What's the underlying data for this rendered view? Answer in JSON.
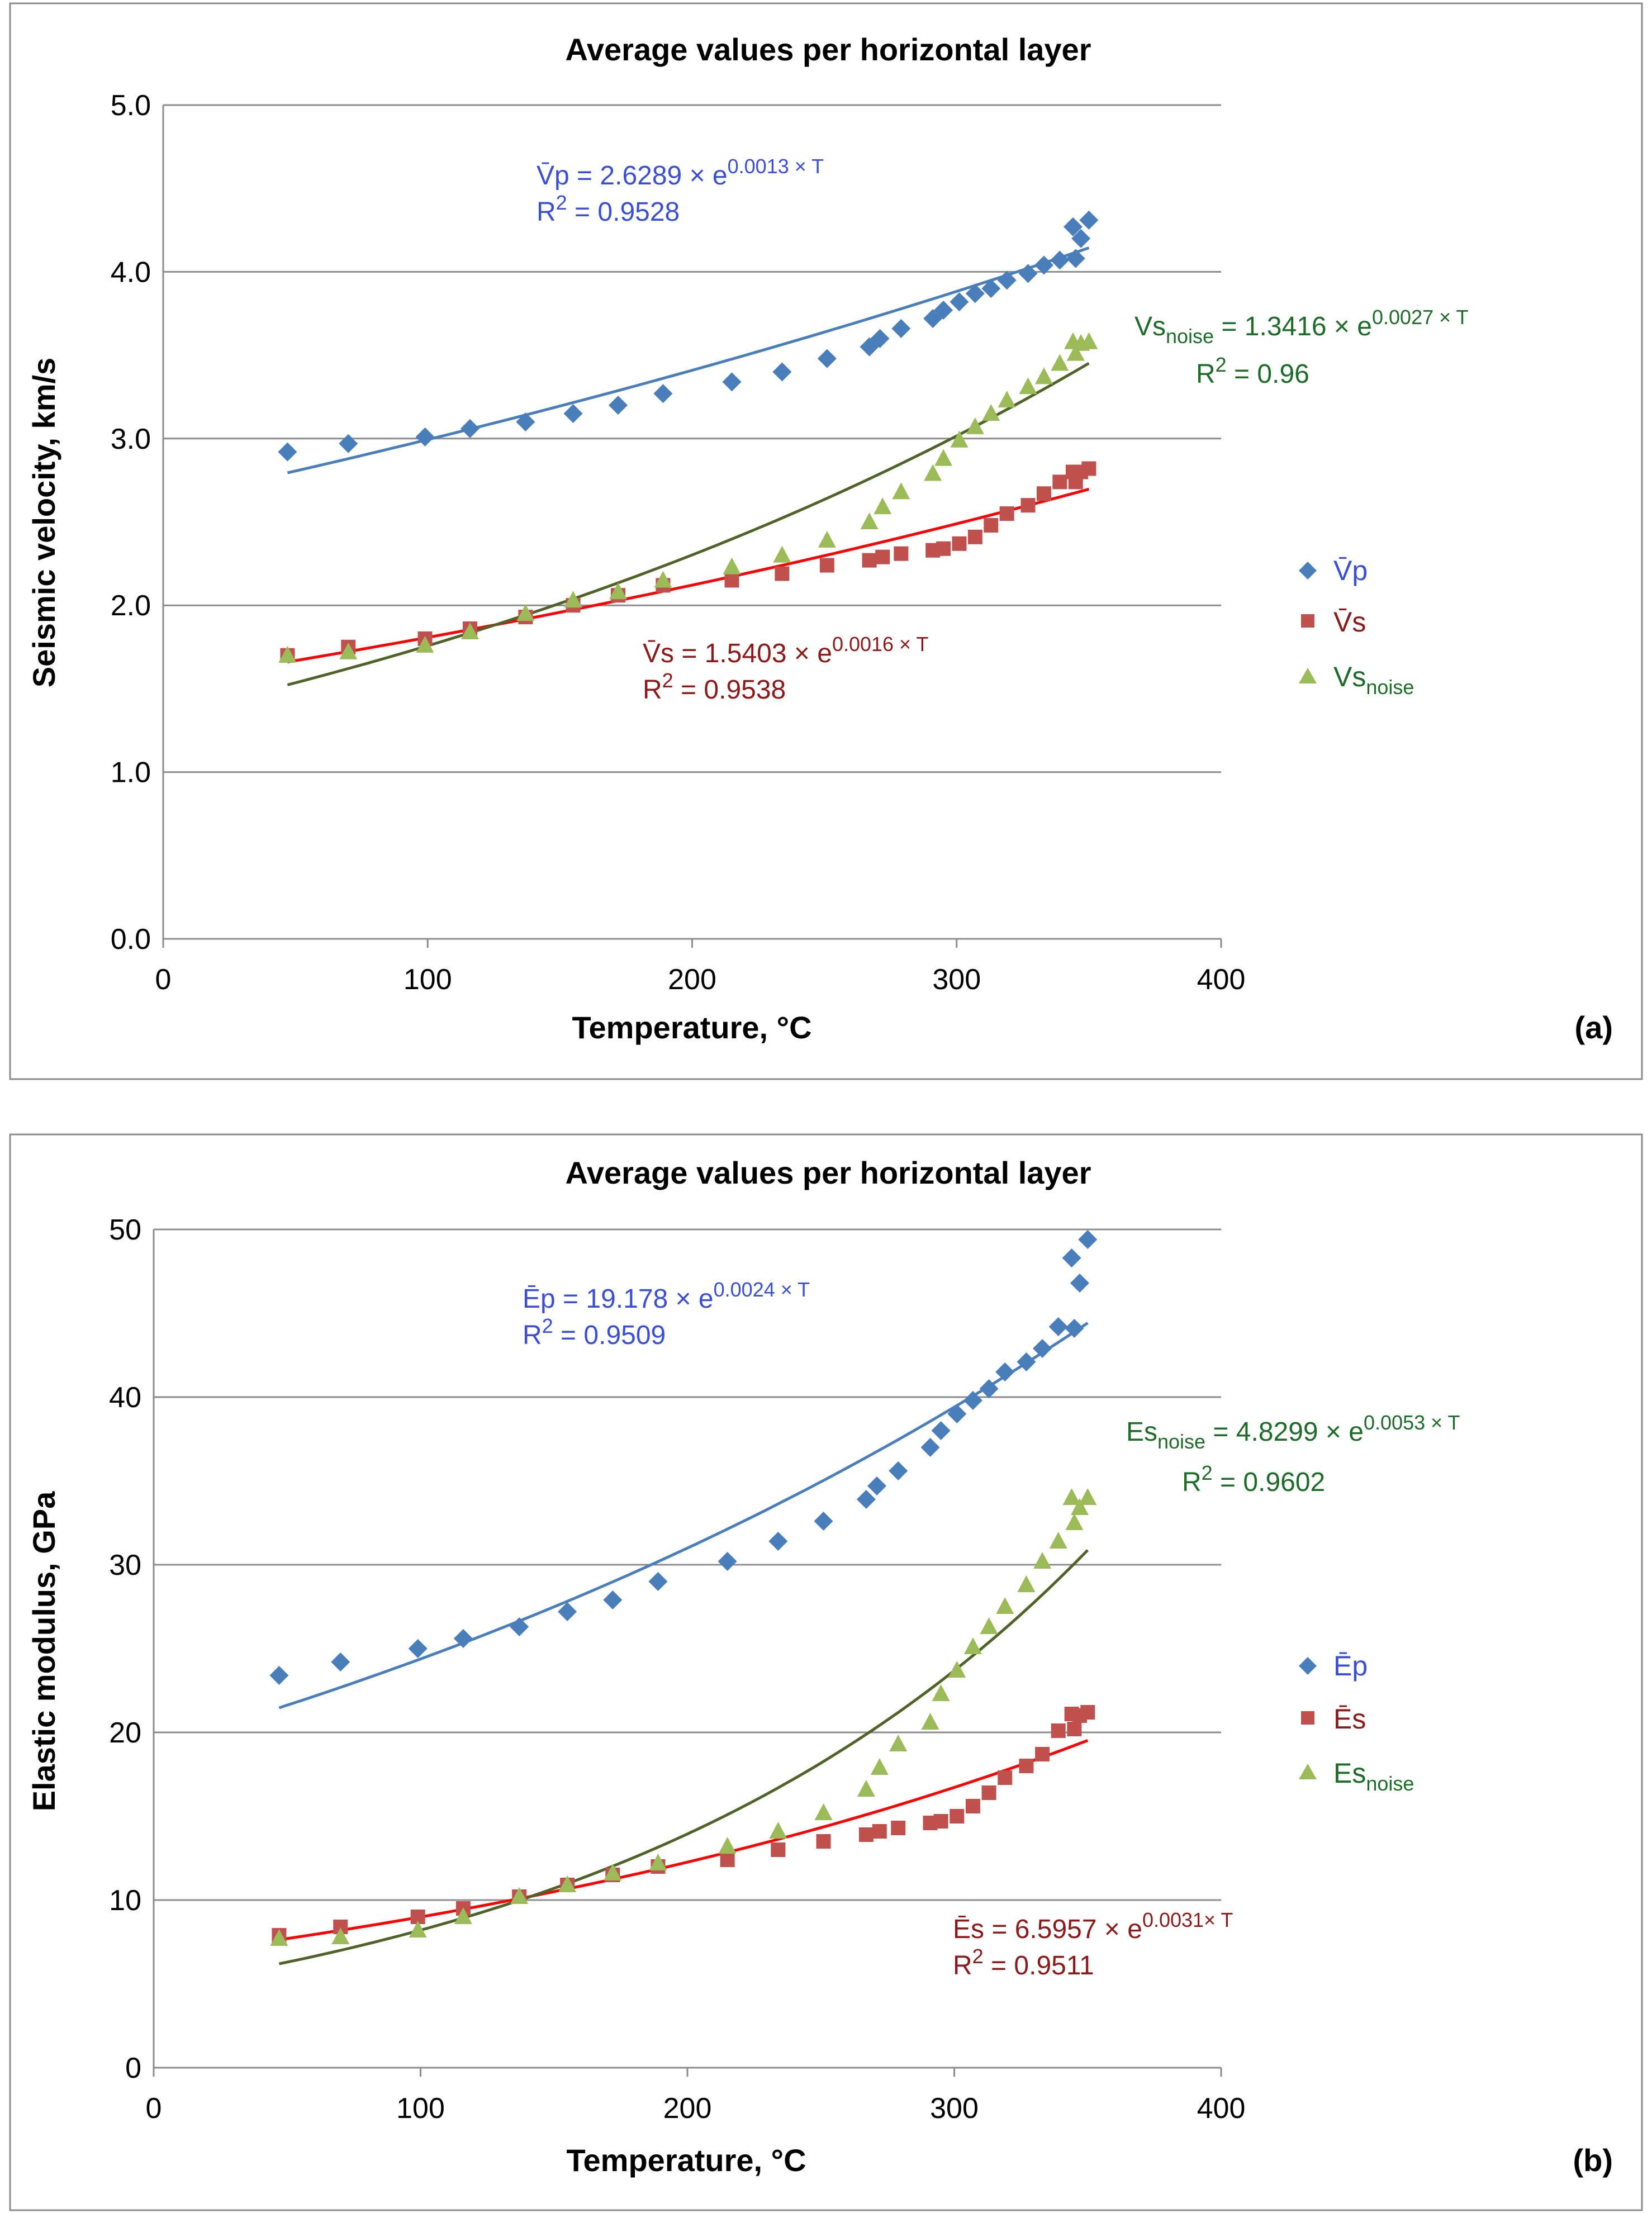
{
  "chart_data": [
    {
      "type": "scatter",
      "panel_label": "(a)",
      "title": "Average values per horizontal layer",
      "xlabel": "Temperature, °C",
      "ylabel": "Seismic velocity, km/s",
      "xlim": [
        0,
        400
      ],
      "ylim": [
        0,
        5
      ],
      "xticks": [
        "0",
        "100",
        "200",
        "300",
        "400"
      ],
      "yticks": [
        "0.0",
        "1.0",
        "2.0",
        "3.0",
        "4.0",
        "5.0"
      ],
      "legend_position": "right",
      "series": [
        {
          "name_main": "V̄p",
          "name_sub": "",
          "marker": "diamond",
          "color": "#4a7ebb",
          "x": [
            47,
            70,
            99,
            116,
            137,
            155,
            172,
            189,
            215,
            234,
            251,
            267,
            271,
            279,
            291,
            295,
            301,
            307,
            313,
            319,
            327,
            333,
            339,
            344,
            345,
            347,
            350
          ],
          "y": [
            2.92,
            2.97,
            3.01,
            3.06,
            3.1,
            3.15,
            3.2,
            3.27,
            3.34,
            3.4,
            3.48,
            3.55,
            3.6,
            3.66,
            3.72,
            3.77,
            3.82,
            3.87,
            3.9,
            3.95,
            3.99,
            4.04,
            4.07,
            4.27,
            4.08,
            4.2,
            4.31
          ],
          "fit": {
            "a": 2.6289,
            "b": 0.0013,
            "color": "#4a7ebb"
          }
        },
        {
          "name_main": "V̄s",
          "name_sub": "",
          "marker": "square",
          "color": "#c0504d",
          "x": [
            47,
            70,
            99,
            116,
            137,
            155,
            172,
            189,
            215,
            234,
            251,
            267,
            272,
            279,
            291,
            295,
            301,
            307,
            313,
            319,
            327,
            333,
            339,
            344,
            345,
            347,
            350
          ],
          "y": [
            1.7,
            1.75,
            1.8,
            1.86,
            1.93,
            2.0,
            2.06,
            2.12,
            2.15,
            2.19,
            2.24,
            2.27,
            2.29,
            2.31,
            2.33,
            2.34,
            2.37,
            2.41,
            2.48,
            2.55,
            2.6,
            2.67,
            2.74,
            2.8,
            2.74,
            2.8,
            2.82
          ],
          "fit": {
            "a": 1.5403,
            "b": 0.0016,
            "color": "#ff0000"
          }
        },
        {
          "name_main": "Vs",
          "name_sub": "noise",
          "marker": "triangle",
          "color": "#9bbb59",
          "x": [
            47,
            70,
            99,
            116,
            137,
            155,
            172,
            189,
            215,
            234,
            251,
            267,
            272,
            279,
            291,
            295,
            301,
            307,
            313,
            319,
            327,
            333,
            339,
            344,
            345,
            347,
            350
          ],
          "y": [
            1.7,
            1.72,
            1.76,
            1.84,
            1.95,
            2.03,
            2.08,
            2.15,
            2.23,
            2.3,
            2.39,
            2.5,
            2.59,
            2.68,
            2.79,
            2.88,
            2.99,
            3.07,
            3.15,
            3.23,
            3.31,
            3.37,
            3.45,
            3.58,
            3.51,
            3.57,
            3.58
          ],
          "fit": {
            "a": 1.3416,
            "b": 0.0027,
            "color": "#4f6228"
          }
        }
      ],
      "annotations": [
        {
          "pre": "V̄p = 2.6289 × e",
          "sup": "0.0013 × T",
          "sub": "",
          "r2": "0.9528",
          "color": "#3b4fd6"
        },
        {
          "pre": "V̄s = 1.5403 × e",
          "sup": "0.0016 × T",
          "sub": "",
          "r2": "0.9538",
          "color": "#8b1a1a"
        },
        {
          "pre_main": "Vs",
          "sub": "noise",
          "pre": " = 1.3416 × e",
          "sup": "0.0027 × T",
          "r2": "0.96",
          "color": "#1e6b2a"
        }
      ]
    },
    {
      "type": "scatter",
      "panel_label": "(b)",
      "title": "Average values per horizontal layer",
      "xlabel": "Temperature, °C",
      "ylabel": "Elastic modulus, GPa",
      "xlim": [
        0,
        400
      ],
      "ylim": [
        0,
        50
      ],
      "xticks": [
        "0",
        "100",
        "200",
        "300",
        "400"
      ],
      "yticks": [
        "0",
        "10",
        "20",
        "30",
        "40",
        "50"
      ],
      "legend_position": "right",
      "series": [
        {
          "name_main": "Ēp",
          "name_sub": "",
          "marker": "diamond",
          "color": "#4a7ebb",
          "x": [
            47,
            70,
            99,
            116,
            137,
            155,
            172,
            189,
            215,
            234,
            251,
            267,
            271,
            279,
            291,
            295,
            301,
            307,
            313,
            319,
            327,
            333,
            339,
            344,
            345,
            347,
            350
          ],
          "y": [
            23.4,
            24.2,
            25.0,
            25.6,
            26.3,
            27.2,
            27.9,
            29.0,
            30.2,
            31.4,
            32.6,
            33.9,
            34.7,
            35.6,
            37.0,
            38.0,
            39.0,
            39.8,
            40.5,
            41.5,
            42.1,
            42.9,
            44.2,
            48.3,
            44.1,
            46.8,
            49.4
          ],
          "fit": {
            "a": 19.178,
            "b": 0.0024,
            "color": "#4a7ebb"
          }
        },
        {
          "name_main": "Ēs",
          "name_sub": "",
          "marker": "square",
          "color": "#c0504d",
          "x": [
            47,
            70,
            99,
            116,
            137,
            155,
            172,
            189,
            215,
            234,
            251,
            267,
            272,
            279,
            291,
            295,
            301,
            307,
            313,
            319,
            327,
            333,
            339,
            344,
            345,
            347,
            350
          ],
          "y": [
            7.9,
            8.4,
            9.0,
            9.5,
            10.2,
            10.9,
            11.5,
            12.0,
            12.4,
            13.0,
            13.5,
            13.9,
            14.1,
            14.3,
            14.6,
            14.7,
            15.0,
            15.6,
            16.4,
            17.3,
            18.0,
            18.7,
            20.1,
            21.1,
            20.2,
            21.0,
            21.2
          ],
          "fit": {
            "a": 6.5957,
            "b": 0.0031,
            "color": "#ff0000"
          }
        },
        {
          "name_main": "Es",
          "name_sub": "noise",
          "marker": "triangle",
          "color": "#9bbb59",
          "x": [
            47,
            70,
            99,
            116,
            137,
            155,
            172,
            189,
            215,
            234,
            251,
            267,
            272,
            279,
            291,
            295,
            301,
            307,
            313,
            319,
            327,
            333,
            339,
            344,
            345,
            347,
            350
          ],
          "y": [
            7.7,
            7.8,
            8.2,
            9.0,
            10.2,
            10.9,
            11.6,
            12.2,
            13.2,
            14.1,
            15.2,
            16.6,
            17.9,
            19.3,
            20.6,
            22.3,
            23.7,
            25.1,
            26.3,
            27.5,
            28.8,
            30.2,
            31.4,
            34.0,
            32.5,
            33.4,
            34.0
          ],
          "fit": {
            "a": 4.8299,
            "b": 0.0053,
            "color": "#4f6228"
          }
        }
      ],
      "annotations": [
        {
          "pre": "Ēp = 19.178 × e",
          "sup": "0.0024 × T",
          "sub": "",
          "r2": "0.9509",
          "color": "#3b4fd6"
        },
        {
          "pre": "Ēs = 6.5957 × e",
          "sup": "0.0031× T",
          "sub": "",
          "r2": "0.9511",
          "color": "#8b1a1a"
        },
        {
          "pre_main": "Es",
          "sub": "noise",
          "pre": " = 4.8299 × e",
          "sup": "0.0053 × T",
          "r2": "0.9602",
          "color": "#1e6b2a"
        }
      ]
    }
  ]
}
